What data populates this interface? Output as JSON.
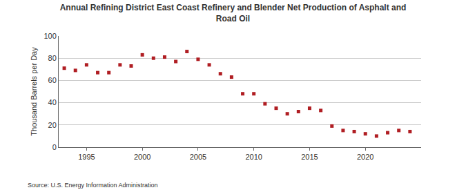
{
  "chart_data": {
    "type": "scatter",
    "title": "Annual Refining District East Coast Refinery and Blender Net Production of Asphalt and Road Oil",
    "y_label": "Thousand Barrels per Day",
    "annotations": [
      "Source: U.S. Energy Information Administration"
    ],
    "x": [
      1993,
      1994,
      1995,
      1996,
      1997,
      1998,
      1999,
      2000,
      2001,
      2002,
      2003,
      2004,
      2005,
      2006,
      2007,
      2008,
      2009,
      2010,
      2011,
      2012,
      2013,
      2014,
      2015,
      2016,
      2017,
      2018,
      2019,
      2020,
      2021,
      2022,
      2023,
      2024
    ],
    "values": [
      71,
      69,
      74,
      67,
      67,
      74,
      73,
      83,
      80,
      81,
      77,
      86,
      79,
      74,
      66,
      63,
      48,
      48,
      39,
      35,
      30,
      32,
      35,
      33,
      19,
      15,
      14,
      12,
      10,
      13,
      15,
      14
    ],
    "color": "#b01e23",
    "marker": "square",
    "xlim": [
      1992.5,
      2025
    ],
    "xticks": [
      1995,
      2000,
      2005,
      2010,
      2015,
      2020
    ],
    "ylim": [
      0,
      100
    ],
    "yticks": [
      0,
      20,
      40,
      60,
      80,
      100
    ],
    "grid": true
  }
}
